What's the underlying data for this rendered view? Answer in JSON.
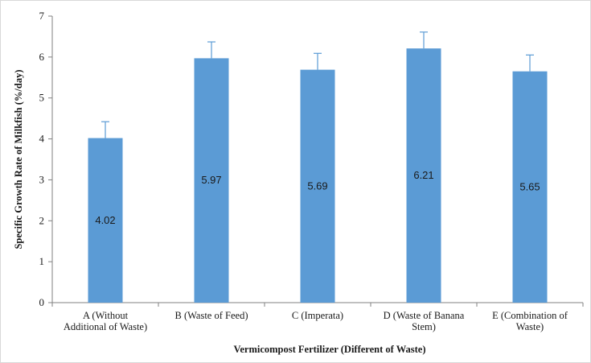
{
  "chart_data": {
    "type": "bar",
    "categories": [
      [
        "A (Without",
        "Additional of Waste)"
      ],
      [
        "B (Waste of Feed)"
      ],
      [
        "C (Imperata)"
      ],
      [
        "D (Waste of Banana",
        "Stem)"
      ],
      [
        "E (Combination of",
        "Waste)"
      ]
    ],
    "values": [
      4.02,
      5.97,
      5.69,
      6.21,
      5.65
    ],
    "data_labels": [
      "4.02",
      "5.97",
      "5.69",
      "6.21",
      "5.65"
    ],
    "error": [
      0.4,
      0.4,
      0.4,
      0.4,
      0.4
    ],
    "xlabel": "Vermicompost  Fertilizer  (Different of Waste)",
    "ylabel": "Specific Growth Rate of  Milkfish (%/day)",
    "ylim": [
      0,
      7
    ],
    "yticks": [
      0,
      1,
      2,
      3,
      4,
      5,
      6,
      7
    ],
    "bar_color": "#5b9bd5",
    "grid": false,
    "legend": "none"
  }
}
